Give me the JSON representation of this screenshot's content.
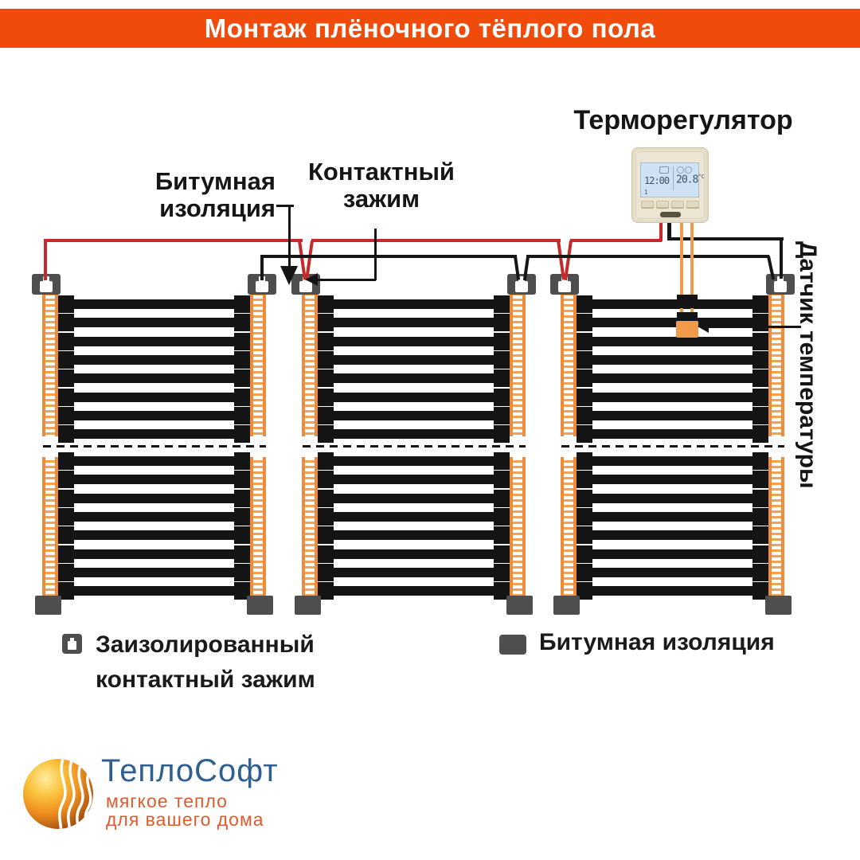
{
  "header": {
    "title": "Монтаж плёночного тёплого пола"
  },
  "annotations": {
    "thermostat_label": "Терморегулятор",
    "bitumen_line1": "Битумная",
    "bitumen_line2": "изоляция",
    "clamp_line1": "Контактный",
    "clamp_line2": "зажим",
    "sensor_label": "Датчик температуры"
  },
  "thermostat_device": {
    "time": "12:00",
    "temperature": "20.8",
    "unit": "°C"
  },
  "legend": {
    "item1_line1": "Заизолированный",
    "item1_line2": "контактный зажим",
    "item2": "Битумная изоляция"
  },
  "logo": {
    "brand": "ТеплоСофт",
    "tagline_line1": "мягкое тепло",
    "tagline_line2": "для вашего дома"
  },
  "mats": {
    "count": 3,
    "sections": 2,
    "stripes_per_section": 8
  },
  "colors": {
    "header_bg": "#f04b0a",
    "wire_red": "#c5292a",
    "wire_black": "#161616",
    "busbar_orange": "#ee8c3e",
    "clamp_gray": "#4e4e4e",
    "sensor_orange": "#f09a4a",
    "brand_blue": "#2f5e91",
    "brand_orange": "#e05a2b"
  }
}
